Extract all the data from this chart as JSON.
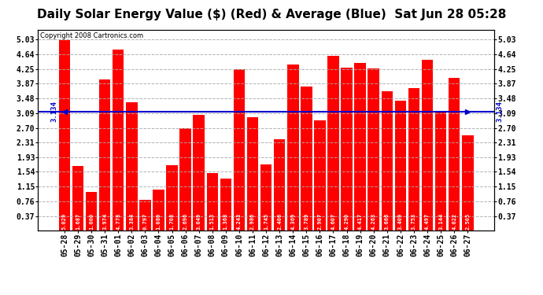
{
  "title": "Daily Solar Energy Value ($) (Red) & Average (Blue)  Sat Jun 28 05:28",
  "copyright": "Copyright 2008 Cartronics.com",
  "average": 3.134,
  "categories": [
    "05-28",
    "05-29",
    "05-30",
    "05-31",
    "06-01",
    "06-02",
    "06-03",
    "06-04",
    "06-05",
    "06-06",
    "06-07",
    "06-08",
    "06-09",
    "06-10",
    "06-11",
    "06-12",
    "06-13",
    "06-14",
    "06-15",
    "06-16",
    "06-17",
    "06-18",
    "06-19",
    "06-20",
    "06-21",
    "06-22",
    "06-23",
    "06-24",
    "06-25",
    "06-26",
    "06-27"
  ],
  "values": [
    5.029,
    1.687,
    1.0,
    3.974,
    4.778,
    3.384,
    0.797,
    1.08,
    1.708,
    2.696,
    3.049,
    1.513,
    1.368,
    4.243,
    2.986,
    1.745,
    2.406,
    4.369,
    3.789,
    2.907,
    4.607,
    4.29,
    4.417,
    4.263,
    3.666,
    3.409,
    3.753,
    4.497,
    3.144,
    4.022,
    2.505
  ],
  "bar_color": "#FF0000",
  "avg_line_color": "#0000CD",
  "bg_color": "#FFFFFF",
  "plot_bg_color": "#FFFFFF",
  "grid_color": "#AAAAAA",
  "yticks": [
    0.37,
    0.76,
    1.15,
    1.54,
    1.93,
    2.31,
    2.7,
    3.09,
    3.48,
    3.87,
    4.25,
    4.64,
    5.03
  ],
  "ylim": [
    0.0,
    5.3
  ],
  "title_fontsize": 11,
  "tick_fontsize": 7,
  "avg_label": "3.134"
}
